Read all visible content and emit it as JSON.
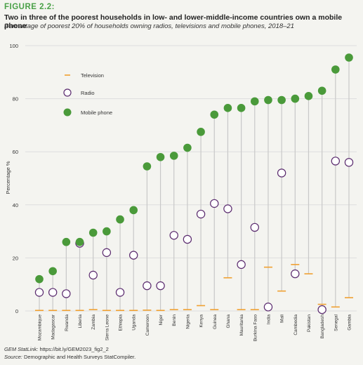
{
  "figure": {
    "label": "FIGURE 2.2:",
    "title": "Two in three of the poorest households in low- and lower-middle-income countries own a mobile phone",
    "subtitle": "Percentage of poorest 20% of households owning radios, televisions and mobile phones, 2018–21"
  },
  "footer": {
    "statlink_label": "GEM StatLink:",
    "statlink_url": "https://bit.ly/GEM2023_fig2_2",
    "source_label": "Source:",
    "source_text": "Demographic and Health Surveys StatCompiler."
  },
  "colors": {
    "television": "#f0a030",
    "radio": "#5a2a6e",
    "mobile": "#4a9a3a",
    "gridline": "#dedede",
    "connector": "#c8c8c8"
  },
  "chart_data": {
    "type": "scatter",
    "title": "",
    "xlabel": "",
    "ylabel": "Percentage %",
    "ylim": [
      0,
      100
    ],
    "yticks": [
      0,
      20,
      40,
      60,
      80,
      100
    ],
    "grid": true,
    "legend_placement": "top-left",
    "categories": [
      "Mozambique",
      "Madagascar",
      "Rwanda",
      "Liberia",
      "Zambia",
      "Sierra Leone",
      "Ethiopia",
      "Uganda",
      "Cameroon",
      "Niger",
      "Benin",
      "Nigeria",
      "Kenya",
      "Guinea",
      "Ghana",
      "Mauritania",
      "Burkina Faso",
      "India",
      "Mali",
      "Cambodia",
      "Pakistan",
      "Bangladesh",
      "Senegal",
      "Gambia"
    ],
    "series": [
      {
        "name": "Television",
        "marker": "dash",
        "values": [
          0.2,
          0.2,
          0.2,
          0.2,
          0.5,
          0.2,
          0.2,
          0.2,
          0.3,
          0.2,
          0.5,
          0.5,
          2,
          0.5,
          12.5,
          0.5,
          0.5,
          16.5,
          7.5,
          17.5,
          14,
          2.5,
          1.5,
          5
        ]
      },
      {
        "name": "Radio",
        "marker": "open-circle",
        "values": [
          7,
          7,
          6.5,
          25.5,
          13.5,
          22,
          7,
          21,
          9.5,
          9.5,
          28.5,
          27,
          36.5,
          40.5,
          38.5,
          17.5,
          31.5,
          1.5,
          52,
          14,
          null,
          0.5,
          56.5,
          56
        ]
      },
      {
        "name": "Mobile phone",
        "marker": "filled-circle",
        "values": [
          12,
          15,
          26,
          26,
          29.5,
          30,
          34.5,
          38,
          54.5,
          58,
          58.5,
          61.5,
          67.5,
          74,
          76.5,
          76.5,
          79,
          79.5,
          79.5,
          80,
          81,
          83,
          91,
          95.5
        ]
      }
    ]
  }
}
